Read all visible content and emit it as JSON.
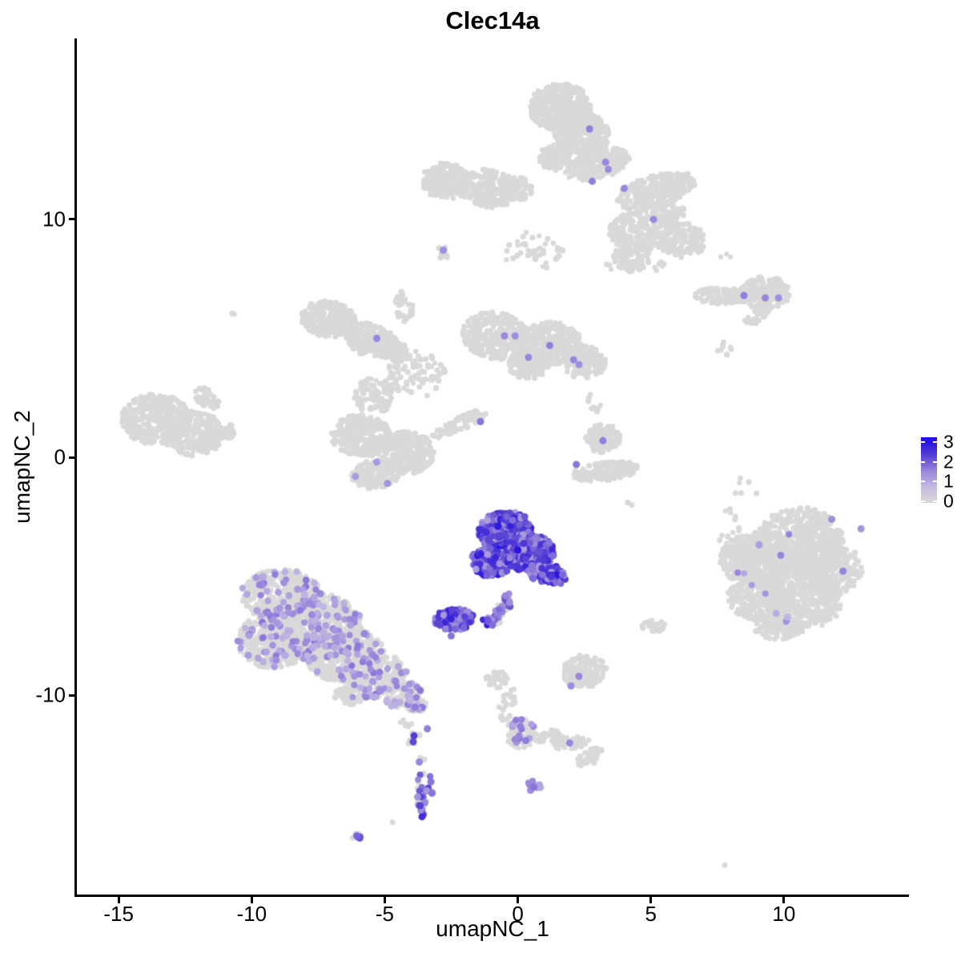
{
  "title": "Clec14a",
  "axes": {
    "x_label": "umapNC_1",
    "y_label": "umapNC_2"
  },
  "colors": {
    "background": "#ffffff",
    "axis": "#000000",
    "gray_point": "#d9d9d9",
    "expression_scale": [
      "#d8d5d5",
      "#c3b9e2",
      "#9a87dc",
      "#5b44d4",
      "#2713dd"
    ]
  },
  "chart_data": {
    "type": "scatter",
    "title": "Clec14a",
    "xlabel": "umapNC_1",
    "ylabel": "umapNC_2",
    "x_ticks": [
      -15,
      -10,
      -5,
      0,
      5,
      10
    ],
    "y_ticks": [
      10,
      0,
      -10
    ],
    "x_domain": [
      -16.6,
      14.7
    ],
    "y_domain": [
      -18.4,
      17.6
    ],
    "grid": false,
    "legend": {
      "position": "right",
      "ticks": [
        3,
        2,
        1,
        0
      ],
      "range": [
        0,
        3
      ]
    },
    "gray": "#d9d9d9",
    "point_color_scale": [
      "#d8d5d5",
      "#c3b9e2",
      "#9a87dc",
      "#5b44d4",
      "#2713dd"
    ],
    "seed": 42,
    "clusters": [
      [
        1.6,
        14.7,
        1.15,
        1.0,
        0,
        420,
        "g"
      ],
      [
        2.4,
        13.6,
        1.05,
        0.9,
        -20,
        330,
        "g"
      ],
      [
        1.4,
        12.6,
        0.6,
        0.55,
        0,
        90,
        "g"
      ],
      [
        3.0,
        12.3,
        1.25,
        0.6,
        18,
        200,
        "g"
      ],
      [
        5.2,
        11.2,
        1.55,
        0.65,
        18,
        260,
        "g"
      ],
      [
        5.7,
        10.3,
        0.7,
        0.5,
        0,
        80,
        "g"
      ],
      [
        4.6,
        9.5,
        1.2,
        0.85,
        0,
        210,
        "g"
      ],
      [
        6.2,
        9.1,
        0.85,
        0.75,
        0,
        130,
        "g"
      ],
      [
        4.3,
        8.4,
        0.7,
        0.6,
        0,
        90,
        "g"
      ],
      [
        -2.7,
        11.6,
        0.95,
        0.75,
        -12,
        180,
        "g"
      ],
      [
        -1.1,
        11.3,
        1.15,
        0.8,
        -8,
        220,
        "g"
      ],
      [
        0.0,
        11.3,
        0.55,
        0.5,
        0,
        60,
        "g"
      ],
      [
        0.6,
        8.6,
        1.1,
        0.9,
        0,
        40,
        "g"
      ],
      [
        -2.8,
        8.6,
        0.3,
        0.25,
        0,
        12,
        "g"
      ],
      [
        5.3,
        8.0,
        0.3,
        0.25,
        0,
        6,
        "g"
      ],
      [
        3.4,
        8.0,
        0.2,
        0.2,
        0,
        3,
        "g"
      ],
      [
        7.8,
        8.4,
        0.2,
        0.15,
        0,
        3,
        "g"
      ],
      [
        7.7,
        6.8,
        1.05,
        0.35,
        0,
        110,
        "g"
      ],
      [
        9.3,
        6.9,
        0.95,
        0.7,
        0,
        160,
        "g"
      ],
      [
        9.0,
        6.0,
        0.55,
        0.3,
        40,
        30,
        "g"
      ],
      [
        7.8,
        4.6,
        0.35,
        0.3,
        0,
        8,
        "g"
      ],
      [
        -7.1,
        5.8,
        1.05,
        0.75,
        -12,
        260,
        "g"
      ],
      [
        -5.5,
        4.9,
        1.0,
        0.7,
        -22,
        240,
        "g"
      ],
      [
        -4.5,
        4.4,
        0.5,
        0.4,
        -25,
        70,
        "g"
      ],
      [
        -4.3,
        6.3,
        0.35,
        0.7,
        0,
        40,
        "g"
      ],
      [
        -3.8,
        3.5,
        1.1,
        1.0,
        0,
        80,
        "g"
      ],
      [
        -0.8,
        5.1,
        1.3,
        1.0,
        -10,
        330,
        "g"
      ],
      [
        1.3,
        4.8,
        1.1,
        0.9,
        -10,
        260,
        "g"
      ],
      [
        2.5,
        4.0,
        0.8,
        0.7,
        0,
        140,
        "g"
      ],
      [
        0.4,
        3.9,
        0.8,
        0.6,
        0,
        120,
        "g"
      ],
      [
        -5.9,
        0.9,
        1.1,
        0.9,
        0,
        270,
        "g"
      ],
      [
        -4.2,
        0.2,
        1.05,
        0.9,
        0,
        260,
        "g"
      ],
      [
        -5.3,
        -0.7,
        0.95,
        0.6,
        10,
        160,
        "g"
      ],
      [
        -5.4,
        2.6,
        0.75,
        0.75,
        0,
        90,
        "g"
      ],
      [
        -2.2,
        1.4,
        1.15,
        0.28,
        28,
        70,
        "g"
      ],
      [
        -10.6,
        6.1,
        0.15,
        0.12,
        0,
        2,
        "g"
      ],
      [
        -13.6,
        1.6,
        1.3,
        1.05,
        0,
        340,
        "g"
      ],
      [
        -12.2,
        1.0,
        1.15,
        0.95,
        0,
        280,
        "g"
      ],
      [
        -11.7,
        2.5,
        0.55,
        0.35,
        -38,
        50,
        "g"
      ],
      [
        -11.0,
        1.1,
        0.5,
        0.3,
        0,
        45,
        "g"
      ],
      [
        3.2,
        0.8,
        0.65,
        0.6,
        0,
        120,
        "g"
      ],
      [
        3.3,
        -0.6,
        1.25,
        0.4,
        8,
        160,
        "g"
      ],
      [
        2.9,
        2.3,
        0.35,
        0.4,
        0,
        8,
        "g"
      ],
      [
        4.2,
        -2.0,
        0.15,
        0.12,
        0,
        2,
        "g"
      ],
      [
        -0.5,
        -3.1,
        1.0,
        0.78,
        0,
        300,
        "b"
      ],
      [
        0.4,
        -4.0,
        0.95,
        0.8,
        0,
        280,
        "b"
      ],
      [
        -1.0,
        -4.4,
        0.78,
        0.6,
        0,
        160,
        "b"
      ],
      [
        1.0,
        -4.8,
        0.55,
        0.5,
        0,
        90,
        "b"
      ],
      [
        -0.2,
        -2.6,
        0.5,
        0.32,
        0,
        60,
        "b"
      ],
      [
        1.5,
        -5.0,
        0.3,
        0.35,
        0,
        25,
        "b"
      ],
      [
        -0.6,
        -6.4,
        0.25,
        0.85,
        -28,
        45,
        "x"
      ],
      [
        -2.4,
        -6.8,
        0.75,
        0.45,
        0,
        130,
        "b"
      ],
      [
        -1.05,
        -6.9,
        0.3,
        0.2,
        0,
        8,
        "b"
      ],
      [
        2.5,
        -9.0,
        0.85,
        0.72,
        0,
        150,
        "g"
      ],
      [
        -8.9,
        -5.8,
        1.5,
        1.1,
        0,
        380,
        "m"
      ],
      [
        -7.7,
        -7.1,
        1.85,
        1.4,
        0,
        650,
        "m"
      ],
      [
        -9.2,
        -7.7,
        1.35,
        1.15,
        0,
        330,
        "m"
      ],
      [
        -6.5,
        -8.3,
        1.5,
        1.15,
        0,
        420,
        "m"
      ],
      [
        -5.3,
        -9.2,
        1.15,
        0.85,
        20,
        220,
        "m"
      ],
      [
        -4.3,
        -10.0,
        0.7,
        0.45,
        25,
        110,
        "m"
      ],
      [
        -3.8,
        -10.4,
        0.38,
        0.33,
        0,
        45,
        "m"
      ],
      [
        -6.2,
        -10.0,
        0.7,
        0.4,
        0,
        60,
        "m"
      ],
      [
        -4.2,
        -11.2,
        0.25,
        0.2,
        0,
        6,
        "g"
      ],
      [
        -3.9,
        -11.8,
        0.3,
        0.3,
        0,
        6,
        "g"
      ],
      [
        -3.6,
        -12.6,
        0.15,
        0.12,
        0,
        2,
        "g"
      ],
      [
        -3.5,
        -14.1,
        0.32,
        0.95,
        0,
        40,
        "x"
      ],
      [
        -4.8,
        -15.3,
        0.12,
        0.1,
        0,
        1,
        "g"
      ],
      [
        -6.0,
        -15.9,
        0.3,
        0.18,
        0,
        8,
        "x"
      ],
      [
        -0.8,
        -9.3,
        0.42,
        0.38,
        0,
        40,
        "g"
      ],
      [
        -0.4,
        -10.4,
        0.28,
        0.75,
        -15,
        24,
        "g"
      ],
      [
        0.1,
        -11.6,
        0.55,
        0.65,
        0,
        70,
        "m"
      ],
      [
        1.1,
        -11.7,
        0.6,
        0.26,
        5,
        40,
        "g"
      ],
      [
        2.0,
        -12.0,
        0.7,
        0.25,
        10,
        40,
        "g"
      ],
      [
        2.7,
        -12.6,
        0.55,
        0.3,
        35,
        35,
        "g"
      ],
      [
        0.6,
        -13.8,
        0.3,
        0.22,
        0,
        10,
        "p"
      ],
      [
        7.75,
        -17.2,
        0.12,
        0.1,
        0,
        1,
        "g"
      ],
      [
        10.6,
        -3.6,
        1.65,
        1.5,
        0,
        520,
        "m",
        0.008
      ],
      [
        9.3,
        -4.3,
        1.3,
        1.2,
        0,
        330,
        "m",
        0.008
      ],
      [
        11.6,
        -4.7,
        1.35,
        1.15,
        0,
        330,
        "m",
        0.008
      ],
      [
        9.1,
        -5.9,
        1.2,
        1.0,
        0,
        260,
        "m",
        0.008
      ],
      [
        10.7,
        -6.2,
        1.45,
        1.0,
        0,
        300,
        "m",
        0.008
      ],
      [
        8.3,
        -4.3,
        0.7,
        0.9,
        0,
        120,
        "m",
        0.008
      ],
      [
        9.8,
        -7.1,
        1.0,
        0.55,
        0,
        120,
        "m",
        0.008
      ],
      [
        8.0,
        -3.0,
        0.55,
        0.85,
        0,
        14,
        "g"
      ],
      [
        8.6,
        -1.3,
        0.5,
        0.5,
        0,
        6,
        "g"
      ],
      [
        5.1,
        -7.1,
        0.45,
        0.25,
        0,
        25,
        "g"
      ]
    ],
    "highlights": [
      [
        2.7,
        13.8,
        1.6
      ],
      [
        3.3,
        12.4,
        1.5
      ],
      [
        3.4,
        12.1,
        1.4
      ],
      [
        2.8,
        11.6,
        1.6
      ],
      [
        4.0,
        11.3,
        1.5
      ],
      [
        5.1,
        10.0,
        1.5
      ],
      [
        -2.8,
        8.7,
        1.4
      ],
      [
        -5.3,
        5.0,
        1.5
      ],
      [
        -0.5,
        5.1,
        1.5
      ],
      [
        -0.1,
        5.1,
        1.4
      ],
      [
        1.2,
        4.7,
        1.6
      ],
      [
        0.4,
        4.2,
        1.5
      ],
      [
        2.1,
        4.1,
        1.5
      ],
      [
        2.3,
        3.9,
        1.4
      ],
      [
        -5.3,
        -0.2,
        1.2
      ],
      [
        -6.1,
        -0.8,
        1.2
      ],
      [
        -4.9,
        -1.1,
        1.3
      ],
      [
        -1.4,
        1.5,
        1.7
      ],
      [
        8.5,
        6.8,
        1.6
      ],
      [
        9.3,
        6.7,
        1.5
      ],
      [
        9.8,
        6.7,
        1.4
      ],
      [
        3.2,
        0.7,
        1.6
      ],
      [
        2.2,
        -0.3,
        1.7
      ],
      [
        2.3,
        -9.2,
        1.5
      ],
      [
        2.0,
        -9.6,
        1.4
      ],
      [
        -1.1,
        -6.9,
        2.0
      ],
      [
        -0.95,
        -7.05,
        1.8
      ],
      [
        -2.5,
        -7.5,
        1.7
      ],
      [
        0.0,
        -3.9,
        3.0
      ],
      [
        -0.75,
        -2.9,
        2.9
      ],
      [
        -3.9,
        -11.7,
        2.4
      ],
      [
        -3.93,
        -11.95,
        2.2
      ],
      [
        -3.4,
        -11.4,
        1.6
      ],
      [
        -3.7,
        -12.8,
        1.5
      ],
      [
        -3.6,
        -15.1,
        2.6
      ],
      [
        -6.05,
        -15.9,
        1.9
      ],
      [
        0.1,
        -11.3,
        1.6
      ],
      [
        0.05,
        -11.7,
        1.5
      ],
      [
        -0.1,
        -11.85,
        1.5
      ],
      [
        0.3,
        -11.9,
        1.6
      ],
      [
        1.95,
        -12.0,
        1.5
      ],
      [
        0.6,
        -13.85,
        1.7
      ],
      [
        12.9,
        -3.0,
        1.3
      ],
      [
        11.8,
        -2.6,
        1.4
      ]
    ]
  }
}
